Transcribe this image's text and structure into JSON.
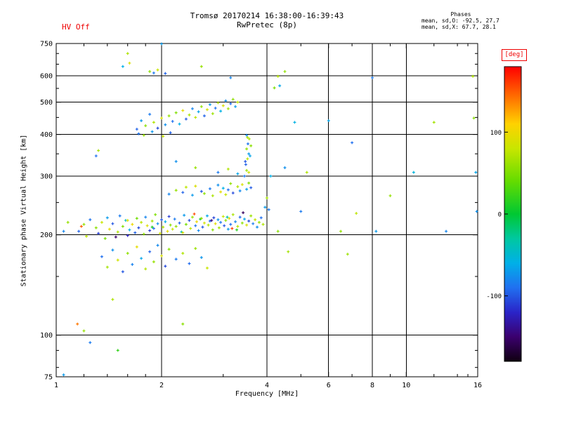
{
  "header": {
    "hv_label": "HV Off",
    "title_line1": "Tromsø 20170214 16:38:00-16:39:43",
    "title_line2": "RwPretec (8p)",
    "phases_title": "Phases",
    "phases_line1": "mean, sd,O: -92.5, 27.7",
    "phases_line2": "mean, sd,X:  67.7, 28.1"
  },
  "colors": {
    "accent_red": "#ee0000",
    "axis": "#000000",
    "background": "#ffffff"
  },
  "chart_data": {
    "type": "scatter",
    "title": "Tromsø 20170214 16:38:00-16:39:43",
    "subtitle": "RwPretec (8p)",
    "xlabel": "Frequency [MHz]",
    "ylabel": "Stationary phase Virtual Height [km]",
    "xscale": "log",
    "yscale": "log",
    "xlim": [
      1,
      16
    ],
    "ylim": [
      75,
      750
    ],
    "xticks": [
      1,
      2,
      4,
      6,
      8,
      10,
      16
    ],
    "yticks": [
      75,
      100,
      200,
      300,
      400,
      500,
      600,
      750
    ],
    "x_minor_ticks": [
      1.2,
      1.4,
      1.6,
      1.8,
      3,
      5,
      7,
      9,
      12,
      14,
      15
    ],
    "y_minor_ticks": [
      80,
      90,
      150,
      250,
      350,
      450,
      550,
      650,
      700
    ],
    "grid": true,
    "marker": "plus",
    "colorbar": {
      "label": "[deg]",
      "ticks": [
        100,
        0,
        -100
      ],
      "range": [
        -180,
        180
      ],
      "colormap": [
        [
          -180,
          "#100010"
        ],
        [
          -150,
          "#3b006e"
        ],
        [
          -120,
          "#2a24c8"
        ],
        [
          -90,
          "#2070f0"
        ],
        [
          -60,
          "#00b0e8"
        ],
        [
          -30,
          "#00c8a0"
        ],
        [
          0,
          "#00c832"
        ],
        [
          40,
          "#64dc00"
        ],
        [
          80,
          "#c8e600"
        ],
        [
          110,
          "#ffd200"
        ],
        [
          140,
          "#ff7800"
        ],
        [
          180,
          "#ff0000"
        ]
      ]
    },
    "points": [
      [
        1.05,
        205,
        -80
      ],
      [
        1.08,
        218,
        60
      ],
      [
        1.16,
        205,
        -95
      ],
      [
        1.18,
        212,
        150
      ],
      [
        1.2,
        215,
        60
      ],
      [
        1.22,
        198,
        75
      ],
      [
        1.25,
        222,
        -88
      ],
      [
        1.3,
        210,
        55
      ],
      [
        1.32,
        202,
        -110
      ],
      [
        1.35,
        218,
        80
      ],
      [
        1.38,
        195,
        48
      ],
      [
        1.4,
        225,
        -70
      ],
      [
        1.42,
        208,
        95
      ],
      [
        1.45,
        216,
        -100
      ],
      [
        1.48,
        197,
        -150
      ],
      [
        1.5,
        204,
        70
      ],
      [
        1.52,
        228,
        -85
      ],
      [
        1.55,
        212,
        52
      ],
      [
        1.58,
        221,
        -45
      ],
      [
        1.6,
        199,
        -120
      ],
      [
        1.6,
        221,
        88
      ],
      [
        1.62,
        207,
        -60
      ],
      [
        1.65,
        215,
        100
      ],
      [
        1.68,
        203,
        -95
      ],
      [
        1.7,
        224,
        45
      ],
      [
        1.72,
        210,
        -105
      ],
      [
        1.75,
        218,
        75
      ],
      [
        1.78,
        201,
        58
      ],
      [
        1.8,
        226,
        -80
      ],
      [
        1.82,
        213,
        92
      ],
      [
        1.85,
        206,
        -115
      ],
      [
        1.88,
        211,
        10
      ],
      [
        1.88,
        220,
        65
      ],
      [
        1.9,
        209,
        -90
      ],
      [
        1.92,
        230,
        50
      ],
      [
        1.95,
        216,
        -75
      ],
      [
        1.98,
        202,
        85
      ],
      [
        2.0,
        222,
        -100
      ],
      [
        2.02,
        211,
        70
      ],
      [
        2.05,
        219,
        -60
      ],
      [
        2.08,
        205,
        95
      ],
      [
        2.1,
        227,
        -110
      ],
      [
        2.12,
        214,
        55
      ],
      [
        2.15,
        208,
        80
      ],
      [
        2.18,
        223,
        -85
      ],
      [
        2.2,
        212,
        60
      ],
      [
        2.25,
        217,
        -95
      ],
      [
        2.28,
        204,
        -40
      ],
      [
        2.3,
        203,
        90
      ],
      [
        2.32,
        229,
        -70
      ],
      [
        2.35,
        215,
        48
      ],
      [
        2.4,
        221,
        -105
      ],
      [
        2.42,
        209,
        75
      ],
      [
        2.45,
        226,
        62
      ],
      [
        2.48,
        231,
        155
      ],
      [
        2.5,
        213,
        -88
      ],
      [
        2.52,
        219,
        100
      ],
      [
        2.55,
        206,
        -78
      ],
      [
        2.58,
        223,
        5
      ],
      [
        2.6,
        224,
        58
      ],
      [
        2.62,
        211,
        -98
      ],
      [
        2.65,
        217,
        85
      ],
      [
        2.7,
        228,
        -65
      ],
      [
        2.72,
        214,
        70
      ],
      [
        2.75,
        220,
        -92
      ],
      [
        2.78,
        221,
        -145
      ],
      [
        2.8,
        207,
        55
      ],
      [
        2.82,
        225,
        -108
      ],
      [
        2.85,
        216,
        95
      ],
      [
        2.9,
        222,
        -75
      ],
      [
        2.92,
        210,
        65
      ],
      [
        2.95,
        218,
        -85
      ],
      [
        3.0,
        227,
        80
      ],
      [
        3.02,
        213,
        -100
      ],
      [
        3.05,
        221,
        58
      ],
      [
        3.08,
        226,
        -35
      ],
      [
        3.1,
        208,
        -70
      ],
      [
        3.12,
        224,
        92
      ],
      [
        3.15,
        215,
        -90
      ],
      [
        3.18,
        209,
        160
      ],
      [
        3.2,
        230,
        68
      ],
      [
        3.25,
        219,
        -80
      ],
      [
        3.28,
        207,
        15
      ],
      [
        3.3,
        212,
        75
      ],
      [
        3.35,
        226,
        -95
      ],
      [
        3.4,
        217,
        55
      ],
      [
        3.42,
        233,
        -155
      ],
      [
        3.45,
        223,
        -65
      ],
      [
        3.5,
        214,
        88
      ],
      [
        3.55,
        220,
        -105
      ],
      [
        3.6,
        228,
        62
      ],
      [
        3.65,
        216,
        -85
      ],
      [
        3.7,
        222,
        78
      ],
      [
        3.75,
        211,
        -75
      ],
      [
        3.8,
        218,
        60
      ],
      [
        3.85,
        225,
        -90
      ],
      [
        3.9,
        215,
        70
      ],
      [
        3.95,
        242,
        -70
      ],
      [
        4.0,
        258,
        65
      ],
      [
        4.05,
        238,
        -85
      ],
      [
        2.1,
        265,
        -80
      ],
      [
        2.2,
        272,
        60
      ],
      [
        2.3,
        268,
        -95
      ],
      [
        2.35,
        278,
        75
      ],
      [
        2.45,
        263,
        -70
      ],
      [
        2.5,
        280,
        90
      ],
      [
        2.6,
        270,
        -100
      ],
      [
        2.65,
        266,
        55
      ],
      [
        2.75,
        275,
        -85
      ],
      [
        2.8,
        262,
        68
      ],
      [
        2.9,
        282,
        -75
      ],
      [
        2.95,
        269,
        95
      ],
      [
        3.0,
        276,
        -60
      ],
      [
        3.05,
        264,
        80
      ],
      [
        3.1,
        273,
        -90
      ],
      [
        3.15,
        285,
        58
      ],
      [
        3.2,
        267,
        -105
      ],
      [
        3.3,
        279,
        72
      ],
      [
        3.35,
        271,
        -78
      ],
      [
        3.4,
        283,
        88
      ],
      [
        3.5,
        274,
        -68
      ],
      [
        3.55,
        286,
        52
      ],
      [
        3.6,
        277,
        -98
      ],
      [
        1.35,
        172,
        -90
      ],
      [
        1.4,
        160,
        65
      ],
      [
        1.45,
        180,
        -75
      ],
      [
        1.5,
        168,
        85
      ],
      [
        1.55,
        155,
        -100
      ],
      [
        1.6,
        176,
        58
      ],
      [
        1.65,
        163,
        -82
      ],
      [
        1.7,
        184,
        95
      ],
      [
        1.75,
        170,
        -65
      ],
      [
        1.8,
        158,
        72
      ],
      [
        1.85,
        178,
        -95
      ],
      [
        1.9,
        166,
        60
      ],
      [
        1.95,
        186,
        -78
      ],
      [
        2.0,
        173,
        88
      ],
      [
        2.05,
        161,
        -105
      ],
      [
        2.1,
        181,
        55
      ],
      [
        2.2,
        169,
        -85
      ],
      [
        2.3,
        176,
        70
      ],
      [
        2.4,
        164,
        -92
      ],
      [
        2.5,
        182,
        62
      ],
      [
        2.6,
        171,
        -72
      ],
      [
        2.7,
        159,
        80
      ],
      [
        1.7,
        415,
        -95
      ],
      [
        1.72,
        402,
        -88
      ],
      [
        1.75,
        440,
        -70
      ],
      [
        1.78,
        398,
        60
      ],
      [
        1.8,
        425,
        55
      ],
      [
        1.85,
        460,
        -85
      ],
      [
        1.88,
        408,
        -72
      ],
      [
        1.9,
        435,
        70
      ],
      [
        1.95,
        418,
        -105
      ],
      [
        2.0,
        448,
        88
      ],
      [
        2.02,
        395,
        80
      ],
      [
        2.05,
        428,
        -75
      ],
      [
        2.1,
        455,
        60
      ],
      [
        2.12,
        405,
        -96
      ],
      [
        2.15,
        438,
        -90
      ],
      [
        2.2,
        465,
        52
      ],
      [
        2.25,
        430,
        -60
      ],
      [
        2.3,
        472,
        95
      ],
      [
        2.35,
        445,
        -100
      ],
      [
        2.4,
        458,
        68
      ],
      [
        2.45,
        478,
        -80
      ],
      [
        2.5,
        450,
        75
      ],
      [
        2.55,
        468,
        -65
      ],
      [
        2.6,
        485,
        58
      ],
      [
        2.65,
        455,
        -95
      ],
      [
        2.7,
        475,
        85
      ],
      [
        2.75,
        492,
        -70
      ],
      [
        2.8,
        462,
        62
      ],
      [
        2.85,
        480,
        -88
      ],
      [
        2.9,
        498,
        72
      ],
      [
        2.95,
        470,
        -58
      ],
      [
        3.0,
        488,
        90
      ],
      [
        3.05,
        505,
        -78
      ],
      [
        3.1,
        478,
        65
      ],
      [
        3.15,
        495,
        -92
      ],
      [
        3.2,
        510,
        58
      ],
      [
        3.25,
        485,
        -68
      ],
      [
        3.3,
        500,
        78
      ],
      [
        3.45,
        300,
        -85
      ],
      [
        3.5,
        312,
        62
      ],
      [
        3.48,
        325,
        -95
      ],
      [
        3.52,
        338,
        75
      ],
      [
        3.55,
        350,
        -70
      ],
      [
        3.5,
        362,
        58
      ],
      [
        3.53,
        375,
        -88
      ],
      [
        3.56,
        388,
        70
      ],
      [
        3.5,
        398,
        -78
      ],
      [
        3.55,
        308,
        85
      ],
      [
        3.58,
        345,
        -65
      ],
      [
        3.6,
        370,
        55
      ],
      [
        3.47,
        332,
        -100
      ],
      [
        3.52,
        392,
        68
      ],
      [
        2.2,
        332,
        -75
      ],
      [
        2.5,
        318,
        60
      ],
      [
        2.9,
        308,
        -85
      ],
      [
        3.1,
        315,
        70
      ],
      [
        3.3,
        305,
        -65
      ],
      [
        1.55,
        640,
        -60
      ],
      [
        1.6,
        700,
        70
      ],
      [
        1.62,
        655,
        90
      ],
      [
        1.85,
        618,
        55
      ],
      [
        1.9,
        612,
        -85
      ],
      [
        1.95,
        625,
        80
      ],
      [
        2.0,
        748,
        -70
      ],
      [
        2.05,
        610,
        -95
      ],
      [
        2.6,
        640,
        60
      ],
      [
        3.15,
        592,
        -80
      ],
      [
        4.2,
        552,
        50
      ],
      [
        4.3,
        598,
        72
      ],
      [
        4.35,
        560,
        -65
      ],
      [
        4.5,
        618,
        58
      ],
      [
        8.0,
        592,
        -85
      ],
      [
        4.1,
        300,
        -60
      ],
      [
        4.3,
        205,
        55
      ],
      [
        4.5,
        318,
        -75
      ],
      [
        4.6,
        178,
        65
      ],
      [
        4.8,
        435,
        -58
      ],
      [
        5.0,
        235,
        -85
      ],
      [
        5.2,
        308,
        70
      ],
      [
        6.0,
        440,
        -65
      ],
      [
        6.5,
        205,
        58
      ],
      [
        6.8,
        175,
        62
      ],
      [
        7.0,
        378,
        -90
      ],
      [
        7.2,
        232,
        75
      ],
      [
        8.2,
        205,
        -70
      ],
      [
        9.0,
        262,
        60
      ],
      [
        10.5,
        308,
        -55
      ],
      [
        12.0,
        435,
        65
      ],
      [
        13.0,
        205,
        -80
      ],
      [
        15.5,
        598,
        70
      ],
      [
        15.6,
        448,
        55
      ],
      [
        15.8,
        308,
        -65
      ],
      [
        15.9,
        235,
        -75
      ],
      [
        1.05,
        76,
        -70
      ],
      [
        1.15,
        108,
        140
      ],
      [
        1.2,
        103,
        60
      ],
      [
        1.25,
        95,
        -85
      ],
      [
        1.3,
        345,
        -90
      ],
      [
        1.32,
        358,
        65
      ],
      [
        1.45,
        128,
        70
      ],
      [
        1.5,
        90,
        20
      ],
      [
        2.3,
        108,
        55
      ]
    ]
  }
}
